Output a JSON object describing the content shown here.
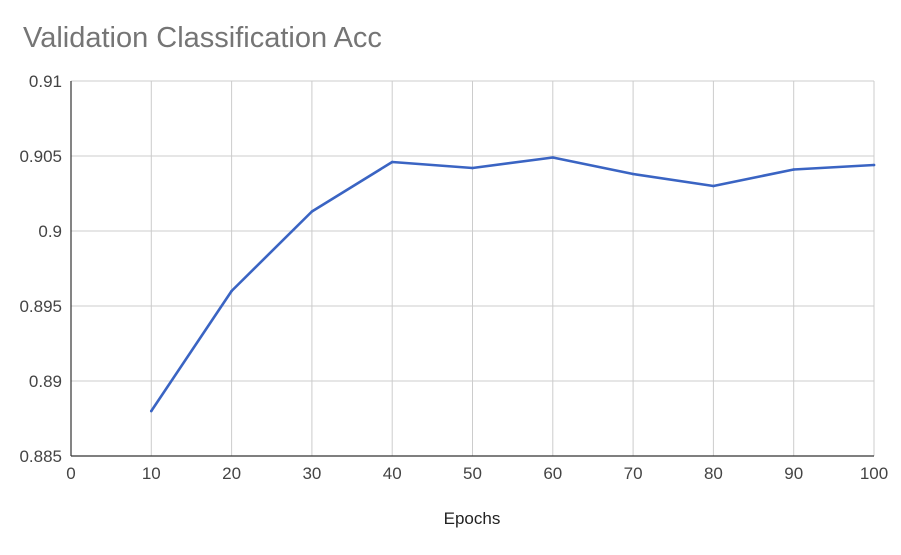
{
  "chart_data": {
    "type": "line",
    "title": "Validation Classification Acc",
    "xlabel": "Epochs",
    "ylabel": "",
    "xlim": [
      0,
      100
    ],
    "ylim": [
      0.885,
      0.91
    ],
    "x_ticks": [
      0,
      10,
      20,
      30,
      40,
      50,
      60,
      70,
      80,
      90,
      100
    ],
    "x_tick_labels": [
      "0",
      "10",
      "20",
      "30",
      "40",
      "50",
      "60",
      "70",
      "80",
      "90",
      "100"
    ],
    "y_ticks": [
      0.885,
      0.89,
      0.895,
      0.9,
      0.905,
      0.91
    ],
    "y_tick_labels": [
      "0.885",
      "0.89",
      "0.895",
      "0.9",
      "0.905",
      "0.91"
    ],
    "grid": true,
    "legend": "none",
    "series": [
      {
        "color": "#3a64c3",
        "x": [
          10,
          20,
          30,
          40,
          50,
          60,
          70,
          80,
          90,
          100
        ],
        "y": [
          0.888,
          0.896,
          0.9013,
          0.9046,
          0.9042,
          0.9049,
          0.9038,
          0.903,
          0.9041,
          0.9044
        ]
      }
    ],
    "colors": {
      "grid": "#cccccc",
      "axis": "#333333",
      "title": "#757575"
    }
  }
}
